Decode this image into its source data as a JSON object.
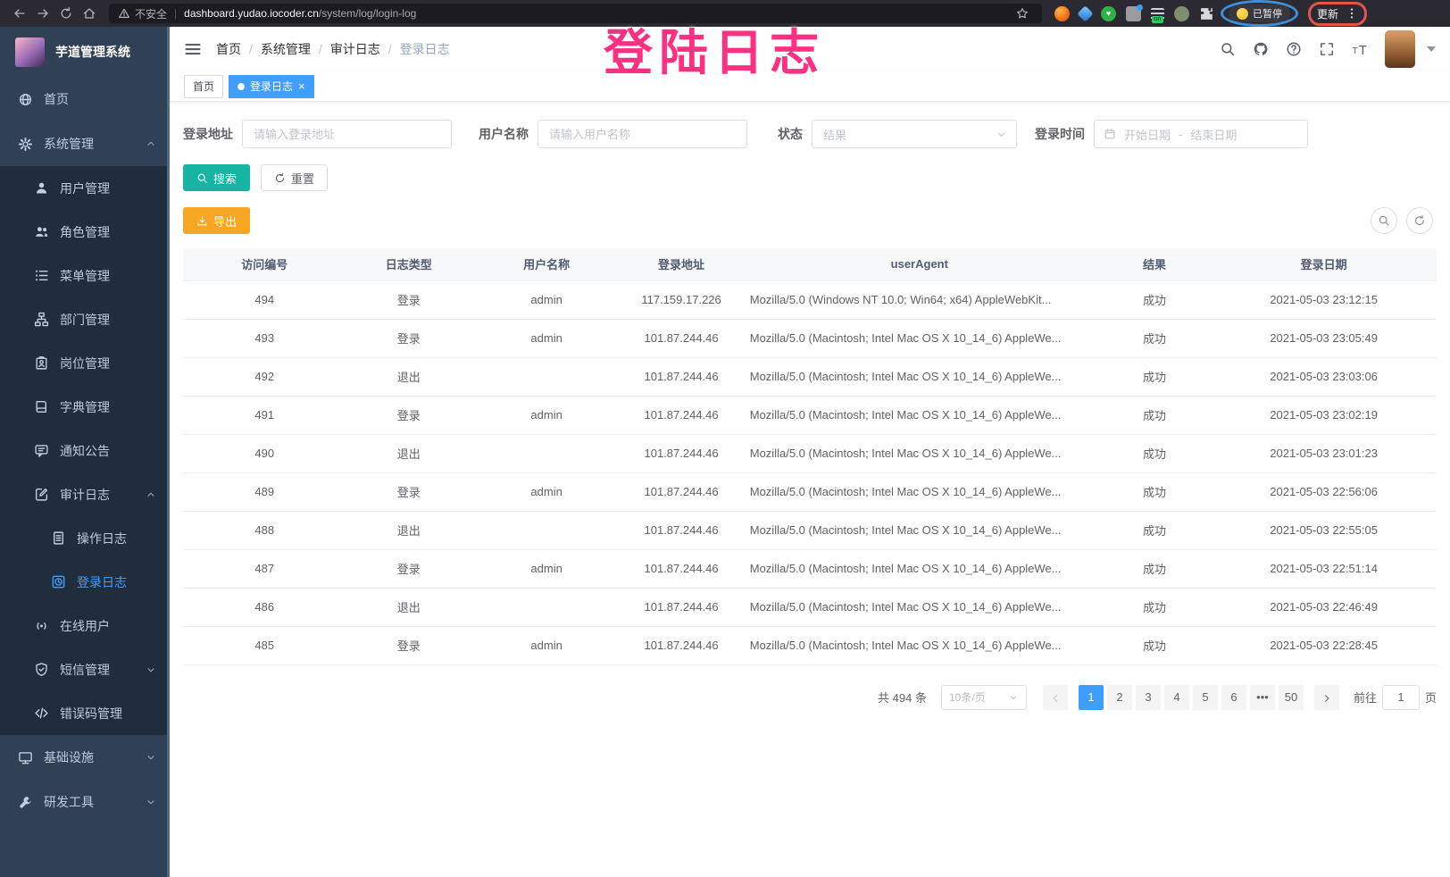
{
  "colors": {
    "primary": "#409eff",
    "sidebar_bg": "#304156",
    "submenu_bg": "#1f2d3d",
    "sidebar_text": "#bfcbd9",
    "search_button": "#17b3a3",
    "export_button": "#f6a623",
    "annotation_pink": "#ff2f81",
    "chrome_bg": "#2b2a33",
    "urlbar_bg": "#1c1b22"
  },
  "overlay_annotation": "登陆日志",
  "browser": {
    "security_label": "不安全",
    "url_host": "dashboard.yudao.iocoder.cn",
    "url_path": "/system/log/login-log",
    "extension_badge": "on",
    "paused_button": "已暂停",
    "update_button": "更新"
  },
  "sidebar": {
    "app_title": "芋道管理系统",
    "items": [
      {
        "id": "home",
        "label": "首页",
        "icon": "home-icon",
        "level": 1
      },
      {
        "id": "system",
        "label": "系统管理",
        "icon": "gear-icon",
        "level": 1,
        "expand": "up"
      },
      {
        "id": "user",
        "label": "用户管理",
        "icon": "user-icon",
        "level": 2
      },
      {
        "id": "role",
        "label": "角色管理",
        "icon": "users-icon",
        "level": 2
      },
      {
        "id": "menu",
        "label": "菜单管理",
        "icon": "menu-list-icon",
        "level": 2
      },
      {
        "id": "dept",
        "label": "部门管理",
        "icon": "org-tree-icon",
        "level": 2
      },
      {
        "id": "post",
        "label": "岗位管理",
        "icon": "id-badge-icon",
        "level": 2
      },
      {
        "id": "dict",
        "label": "字典管理",
        "icon": "dictionary-icon",
        "level": 2
      },
      {
        "id": "notice",
        "label": "通知公告",
        "icon": "notice-icon",
        "level": 2
      },
      {
        "id": "audit",
        "label": "审计日志",
        "icon": "audit-log-icon",
        "level": 2,
        "expand": "up"
      },
      {
        "id": "operate-log",
        "label": "操作日志",
        "icon": "operate-log-icon",
        "level": 3
      },
      {
        "id": "login-log",
        "label": "登录日志",
        "icon": "login-log-icon",
        "level": 3,
        "active": true
      },
      {
        "id": "online-user",
        "label": "在线用户",
        "icon": "online-user-icon",
        "level": 2
      },
      {
        "id": "sms",
        "label": "短信管理",
        "icon": "shield-icon",
        "level": 2,
        "expand": "down"
      },
      {
        "id": "error-code",
        "label": "错误码管理",
        "icon": "code-icon",
        "level": 2
      },
      {
        "id": "infra",
        "label": "基础设施",
        "icon": "monitor-icon",
        "level": 1,
        "expand": "down"
      },
      {
        "id": "dev-tool",
        "label": "研发工具",
        "icon": "tool-icon",
        "level": 1,
        "expand": "down"
      }
    ]
  },
  "header": {
    "breadcrumb": [
      {
        "label": "首页"
      },
      {
        "label": "系统管理"
      },
      {
        "label": "审计日志"
      },
      {
        "label": "登录日志",
        "current": true
      }
    ]
  },
  "tabs": [
    {
      "id": "home",
      "label": "首页",
      "active": false
    },
    {
      "id": "login-log",
      "label": "登录日志",
      "active": true,
      "closable": true
    }
  ],
  "filter": {
    "login_address_label": "登录地址",
    "login_address_placeholder": "请输入登录地址",
    "username_label": "用户名称",
    "username_placeholder": "请输入用户名称",
    "status_label": "状态",
    "status_placeholder": "结果",
    "login_time_label": "登录时间",
    "date_start_placeholder": "开始日期",
    "date_separator": "-",
    "date_end_placeholder": "结束日期",
    "search_button": "搜索",
    "reset_button": "重置"
  },
  "toolbar": {
    "export_button": "导出"
  },
  "table": {
    "columns": [
      "访问编号",
      "日志类型",
      "用户名称",
      "登录地址",
      "userAgent",
      "结果",
      "登录日期"
    ],
    "rows": [
      [
        "494",
        "登录",
        "admin",
        "117.159.17.226",
        "Mozilla/5.0 (Windows NT 10.0; Win64; x64) AppleWebKit...",
        "成功",
        "2021-05-03 23:12:15"
      ],
      [
        "493",
        "登录",
        "admin",
        "101.87.244.46",
        "Mozilla/5.0 (Macintosh; Intel Mac OS X 10_14_6) AppleWe...",
        "成功",
        "2021-05-03 23:05:49"
      ],
      [
        "492",
        "退出",
        "",
        "101.87.244.46",
        "Mozilla/5.0 (Macintosh; Intel Mac OS X 10_14_6) AppleWe...",
        "成功",
        "2021-05-03 23:03:06"
      ],
      [
        "491",
        "登录",
        "admin",
        "101.87.244.46",
        "Mozilla/5.0 (Macintosh; Intel Mac OS X 10_14_6) AppleWe...",
        "成功",
        "2021-05-03 23:02:19"
      ],
      [
        "490",
        "退出",
        "",
        "101.87.244.46",
        "Mozilla/5.0 (Macintosh; Intel Mac OS X 10_14_6) AppleWe...",
        "成功",
        "2021-05-03 23:01:23"
      ],
      [
        "489",
        "登录",
        "admin",
        "101.87.244.46",
        "Mozilla/5.0 (Macintosh; Intel Mac OS X 10_14_6) AppleWe...",
        "成功",
        "2021-05-03 22:56:06"
      ],
      [
        "488",
        "退出",
        "",
        "101.87.244.46",
        "Mozilla/5.0 (Macintosh; Intel Mac OS X 10_14_6) AppleWe...",
        "成功",
        "2021-05-03 22:55:05"
      ],
      [
        "487",
        "登录",
        "admin",
        "101.87.244.46",
        "Mozilla/5.0 (Macintosh; Intel Mac OS X 10_14_6) AppleWe...",
        "成功",
        "2021-05-03 22:51:14"
      ],
      [
        "486",
        "退出",
        "",
        "101.87.244.46",
        "Mozilla/5.0 (Macintosh; Intel Mac OS X 10_14_6) AppleWe...",
        "成功",
        "2021-05-03 22:46:49"
      ],
      [
        "485",
        "登录",
        "admin",
        "101.87.244.46",
        "Mozilla/5.0 (Macintosh; Intel Mac OS X 10_14_6) AppleWe...",
        "成功",
        "2021-05-03 22:28:45"
      ]
    ]
  },
  "pagination": {
    "total_text": "共 494 条",
    "page_size": "10条/页",
    "pages": [
      "1",
      "2",
      "3",
      "4",
      "5",
      "6",
      "•••",
      "50"
    ],
    "active_page": "1",
    "goto_label": "前往",
    "goto_value": "1",
    "goto_unit": "页"
  }
}
